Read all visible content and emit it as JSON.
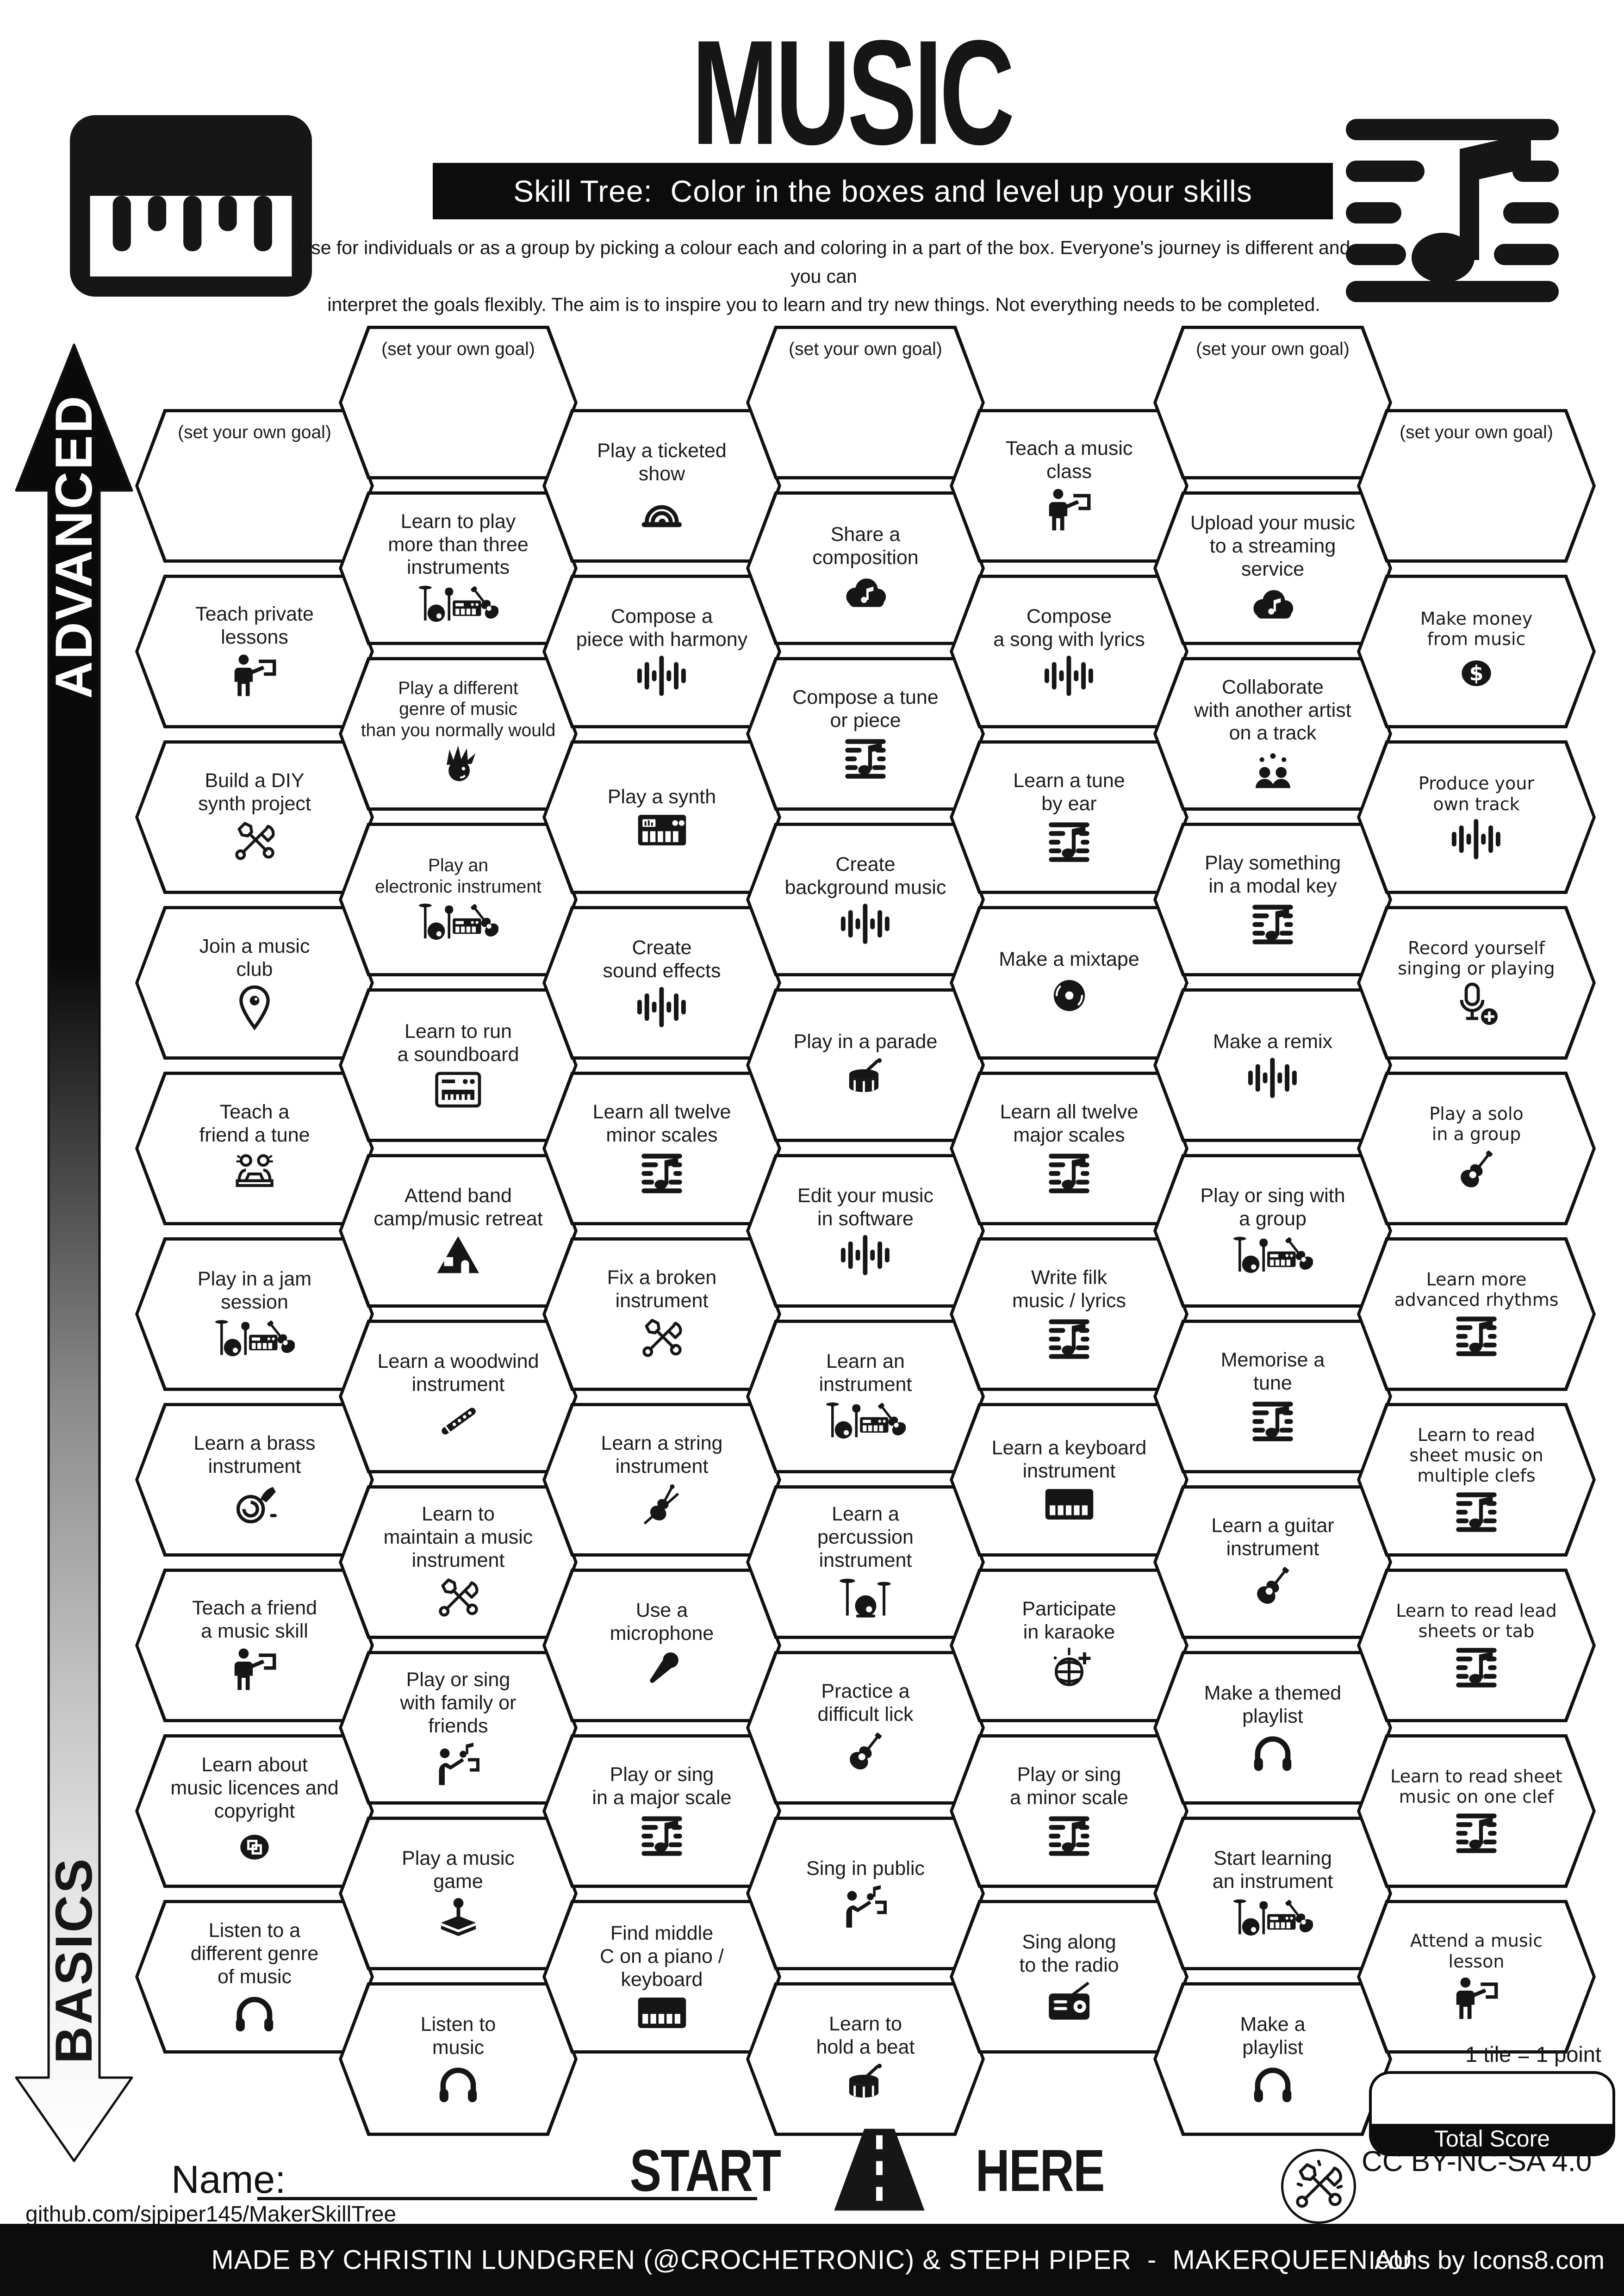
{
  "header": {
    "title": "MUSIC",
    "subtitle": "Skill Tree:  Color in the boxes and level up your skills",
    "description": "Use for individuals or as a group by picking a colour each and coloring in a part of the box.  Everyone's journey is different and you can\ninterpret the goals flexibly.  The aim is to inspire you to learn and try new things. Not everything needs to be completed."
  },
  "axis": {
    "advanced": "ADVANCED",
    "basics": "BASICS"
  },
  "start_here": {
    "start": "START",
    "here": "HERE"
  },
  "scoring": {
    "tile_note": "1 tile = 1 point",
    "total_label": "Total Score"
  },
  "credits": {
    "name_label": "Name:",
    "github": "github.com/sjpiper145/MakerSkillTree",
    "license": "CC BY-NC-SA 4.0",
    "made_by": "MADE BY CHRISTIN LUNDGREN (@CROCHETRONIC) & STEPH PIPER  -  MAKERQUEEN AU",
    "icons_credit": "Icons by Icons8.com"
  },
  "goal_label": "(set your own goal)",
  "grid": {
    "columns": [
      {
        "tiles": [
          {
            "goal": true
          },
          {
            "label": "Teach private\nlessons",
            "icon": "teacher"
          },
          {
            "label": "Build a DIY\nsynth project",
            "icon": "tools"
          },
          {
            "label": "Join a music\nclub",
            "icon": "pin"
          },
          {
            "label": "Teach a\nfriend a tune",
            "icon": "duet"
          },
          {
            "label": "Play in a jam\nsession",
            "icon": "band"
          },
          {
            "label": "Learn a brass\ninstrument",
            "icon": "horn"
          },
          {
            "label": "Teach a friend\na music skill",
            "icon": "teacher"
          },
          {
            "label": "Learn about\nmusic licences and\ncopyright",
            "icon": "copyright"
          },
          {
            "label": "Listen to a\ndifferent genre\nof music",
            "icon": "headphones"
          }
        ]
      },
      {
        "tiles": [
          {
            "goal": true
          },
          {
            "label": "Learn to play\nmore than three\ninstruments",
            "icon": "band"
          },
          {
            "label": "Play a different\ngenre of music\nthan you normally would",
            "icon": "punk"
          },
          {
            "label": "Play an\nelectronic instrument",
            "icon": "band"
          },
          {
            "label": "Learn to run\na soundboard",
            "icon": "soundboard"
          },
          {
            "label": "Attend band\ncamp/music retreat",
            "icon": "tent"
          },
          {
            "label": "Learn a woodwind\ninstrument",
            "icon": "flute"
          },
          {
            "label": "Learn to\nmaintain a music\ninstrument",
            "icon": "tools"
          },
          {
            "label": "Play or sing\nwith family or\nfriends",
            "icon": "singer"
          },
          {
            "label": "Play a music\ngame",
            "icon": "joystick"
          },
          {
            "label": "Listen to\nmusic",
            "icon": "headphones"
          }
        ]
      },
      {
        "tiles": [
          {
            "label": "Play a ticketed\nshow",
            "icon": "stage"
          },
          {
            "label": "Compose a\npiece with harmony",
            "icon": "waveform"
          },
          {
            "label": "Play a synth",
            "icon": "synth"
          },
          {
            "label": "Create\nsound effects",
            "icon": "waveform"
          },
          {
            "label": "Learn all twelve\nminor scales",
            "icon": "sheet"
          },
          {
            "label": "Fix a broken\ninstrument",
            "icon": "tools"
          },
          {
            "label": "Learn a string\ninstrument",
            "icon": "violin"
          },
          {
            "label": "Use a\nmicrophone",
            "icon": "mic"
          },
          {
            "label": "Play or sing\nin a major scale",
            "icon": "sheet"
          },
          {
            "label": "Find middle\nC on a piano /\nkeyboard",
            "icon": "keyboard"
          }
        ]
      },
      {
        "tiles": [
          {
            "goal": true
          },
          {
            "label": "Share a\ncomposition",
            "icon": "cloud"
          },
          {
            "label": "Compose a tune\nor piece",
            "icon": "sheet"
          },
          {
            "label": "Create\nbackground music",
            "icon": "waveform"
          },
          {
            "label": "Play in a parade",
            "icon": "drum"
          },
          {
            "label": "Edit your music\nin software",
            "icon": "waveform"
          },
          {
            "label": "Learn an\ninstrument",
            "icon": "band"
          },
          {
            "label": "Learn a\npercussion\ninstrument",
            "icon": "drumkit"
          },
          {
            "label": "Practice a\ndifficult lick",
            "icon": "guitar"
          },
          {
            "label": "Sing in public",
            "icon": "singer"
          },
          {
            "label": "Learn to\nhold a beat",
            "icon": "drum"
          }
        ]
      },
      {
        "tiles": [
          {
            "label": "Teach a music\nclass",
            "icon": "teacher"
          },
          {
            "label": "Compose\na song with lyrics",
            "icon": "waveform"
          },
          {
            "label": "Learn a tune\nby ear",
            "icon": "sheet"
          },
          {
            "label": "Make a mixtape",
            "icon": "vinyl"
          },
          {
            "label": "Learn all twelve\nmajor scales",
            "icon": "sheet"
          },
          {
            "label": "Write filk\nmusic / lyrics",
            "icon": "sheet"
          },
          {
            "label": "Learn a keyboard\ninstrument",
            "icon": "keyboard"
          },
          {
            "label": "Participate\nin karaoke",
            "icon": "disco"
          },
          {
            "label": "Play or sing\na minor scale",
            "icon": "sheet"
          },
          {
            "label": "Sing along\nto the radio",
            "icon": "radio"
          }
        ]
      },
      {
        "tiles": [
          {
            "goal": true
          },
          {
            "label": "Upload your music\nto a streaming\nservice",
            "icon": "cloud"
          },
          {
            "label": "Collaborate\nwith another artist\non a track",
            "icon": "collab"
          },
          {
            "label": "Play something\nin a modal key",
            "icon": "sheet"
          },
          {
            "label": "Make a remix",
            "icon": "waveform"
          },
          {
            "label": "Play or sing with\na group",
            "icon": "band"
          },
          {
            "label": "Memorise a\ntune",
            "icon": "sheet"
          },
          {
            "label": "Learn a guitar\ninstrument",
            "icon": "guitar"
          },
          {
            "label": "Make a themed\nplaylist",
            "icon": "headphones"
          },
          {
            "label": "Start learning\nan instrument",
            "icon": "band"
          },
          {
            "label": "Make a\nplaylist",
            "icon": "headphones"
          }
        ]
      },
      {
        "tiles": [
          {
            "goal": true
          },
          {
            "label": "Make money\nfrom music",
            "icon": "dollar"
          },
          {
            "label": "Produce your\nown track",
            "icon": "waveform"
          },
          {
            "label": "Record yourself\nsinging or playing",
            "icon": "micplus"
          },
          {
            "label": "Play a solo\nin a group",
            "icon": "guitar"
          },
          {
            "label": "Learn more\nadvanced rhythms",
            "icon": "sheet"
          },
          {
            "label": "Learn to read\nsheet music on\nmultiple clefs",
            "icon": "sheet"
          },
          {
            "label": "Learn to read lead\nsheets or tab",
            "icon": "sheet"
          },
          {
            "label": "Learn to read sheet\nmusic on one clef",
            "icon": "sheet"
          },
          {
            "label": "Attend a music\nlesson",
            "icon": "teacher"
          }
        ]
      }
    ]
  }
}
